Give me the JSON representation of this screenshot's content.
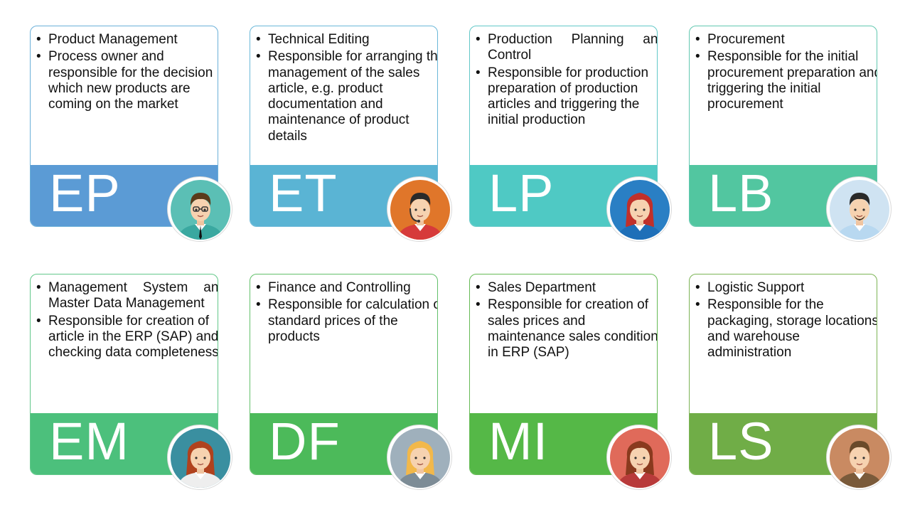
{
  "roles": [
    {
      "code": "EP",
      "title": "Product Management",
      "desc": "Process owner and responsible for the decision which new products are coming on the market",
      "band": "#5b9bd5",
      "border": "#6ab0d8",
      "avatar": "man-glasses-icon",
      "avatar_bg": "#5bbfb5"
    },
    {
      "code": "ET",
      "title": "Technical Editing",
      "desc": "Responsible for arranging the management of the sales article, e.g. product documentation and maintenance of product details",
      "band": "#5ab4d4",
      "border": "#6ab8d8",
      "avatar": "man-headset-icon",
      "avatar_bg": "#e0762a"
    },
    {
      "code": "LP",
      "title": "Production Planning and Control",
      "desc": "Responsible for production preparation of production articles and triggering the initial production",
      "band": "#4fc9c4",
      "border": "#62c8c8",
      "avatar": "woman-red-hair-icon",
      "avatar_bg": "#2a7fc4"
    },
    {
      "code": "LB",
      "title": "Procurement",
      "desc": "Responsible for the initial procurement preparation and triggering the initial procurement",
      "band": "#52c6a0",
      "border": "#62c8b0",
      "avatar": "man-beard-icon",
      "avatar_bg": "#cfe3f2"
    },
    {
      "code": "EM",
      "title": "Management System and Master Data Management",
      "desc": "Responsible for creation of article in the ERP (SAP) and checking data completeness",
      "band": "#4cc07c",
      "border": "#62c88a",
      "avatar": "woman-long-hair-icon",
      "avatar_bg": "#3a8fa0"
    },
    {
      "code": "DF",
      "title": "Finance and Controlling",
      "desc": "Responsible for calculation of standard prices of the products",
      "band": "#4cba5a",
      "border": "#62c06a",
      "avatar": "woman-blonde-icon",
      "avatar_bg": "#9fb0bc"
    },
    {
      "code": "MI",
      "title": "Sales Department",
      "desc": "Responsible for creation of sales prices and maintenance sales conditions in ERP (SAP)",
      "band": "#55b847",
      "border": "#66bb55",
      "avatar": "woman-curly-hair-icon",
      "avatar_bg": "#e06a5a"
    },
    {
      "code": "LS",
      "title": "Logistic Support",
      "desc": "Responsible for the packaging, storage locations and warehouse administration",
      "band": "#70ad47",
      "border": "#7cb455",
      "avatar": "man-brown-hair-icon",
      "avatar_bg": "#c98a62"
    }
  ]
}
